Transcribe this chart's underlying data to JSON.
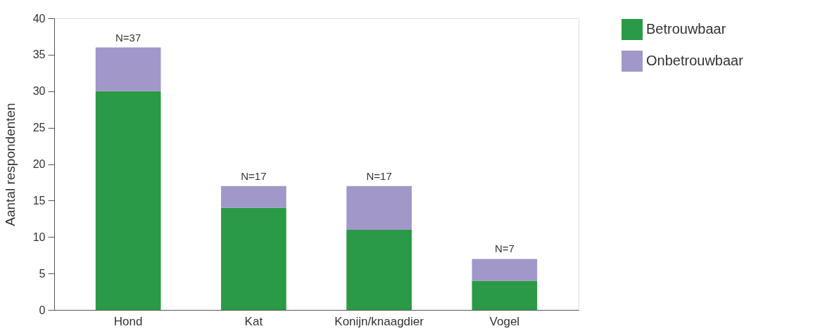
{
  "chart_data": {
    "type": "bar",
    "ylabel": "Aantal respondenten",
    "categories": [
      "Hond",
      "Kat",
      "Konijn/knaagdier",
      "Vogel"
    ],
    "series": [
      {
        "name": "Betrouwbaar",
        "color": "#2a9a47",
        "values": [
          30,
          14,
          11,
          4
        ]
      },
      {
        "name": "Onbetrouwbaar",
        "color": "#a197c9",
        "values": [
          6,
          3,
          6,
          3
        ]
      }
    ],
    "stacked": true,
    "totals": [
      "N=37",
      "N=17",
      "N=17",
      "N=7"
    ],
    "ylim": [
      0,
      40
    ],
    "yticks": [
      0,
      5,
      10,
      15,
      20,
      25,
      30,
      35,
      40
    ],
    "grid": false,
    "legend": "right"
  }
}
